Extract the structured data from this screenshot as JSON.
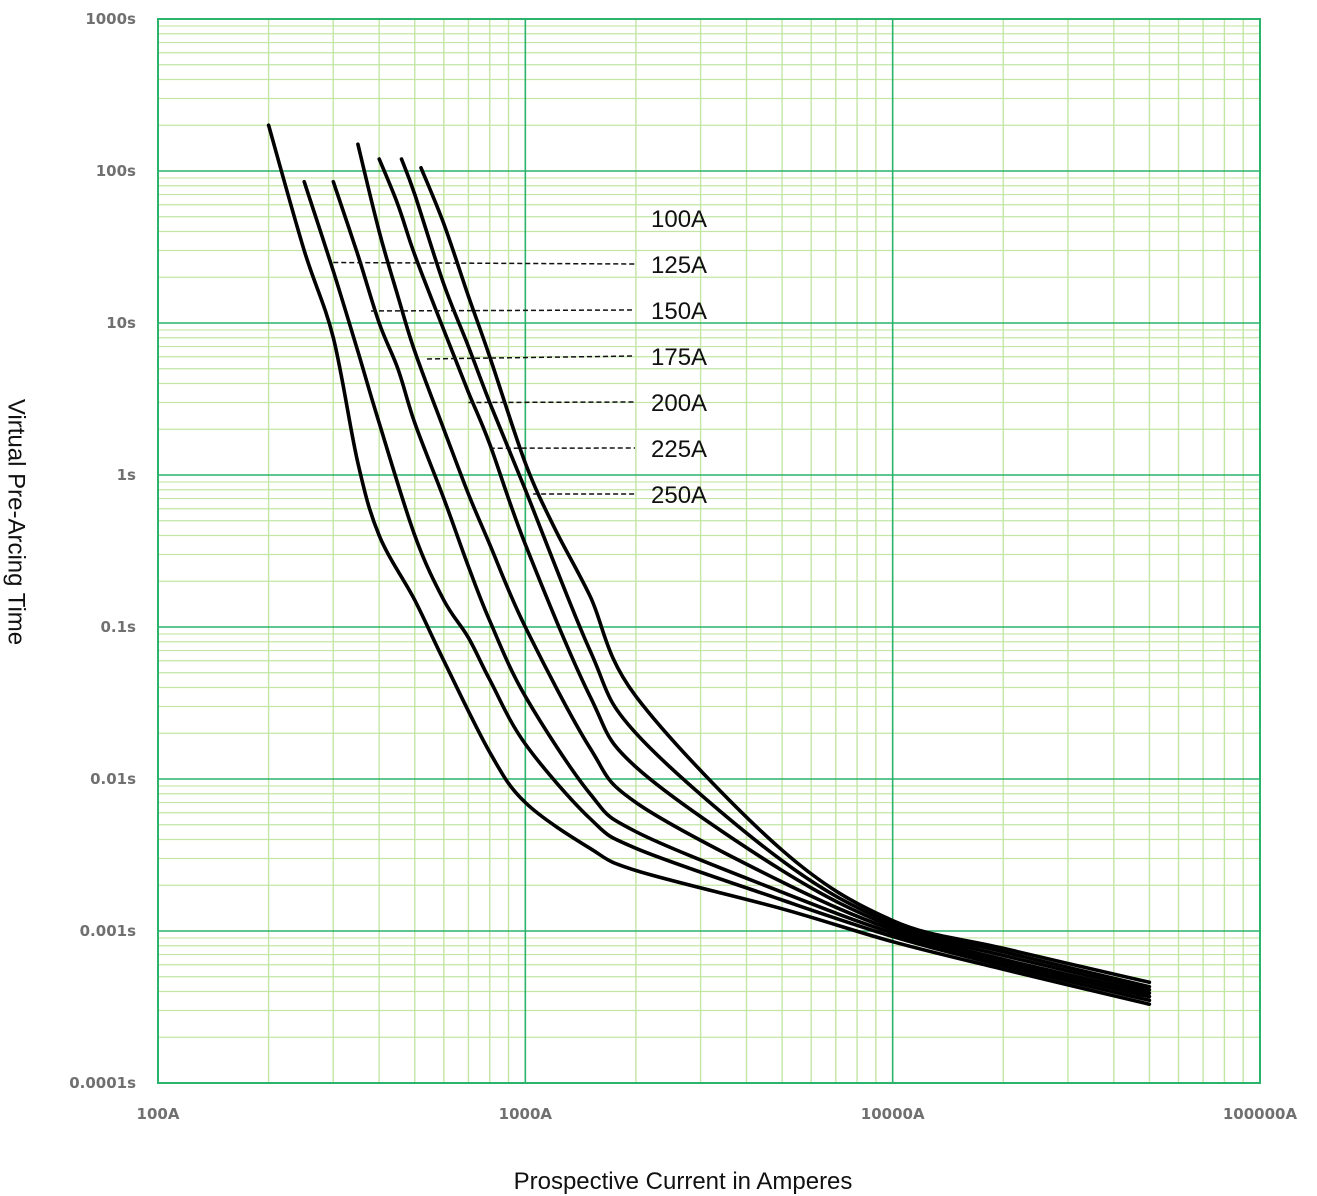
{
  "chart_data": {
    "type": "line",
    "scale": {
      "x": "log",
      "y": "log"
    },
    "xlim": [
      100,
      100000
    ],
    "ylim": [
      0.0001,
      1000
    ],
    "xlabel": "Prospective Current in Amperes",
    "ylabel": "Virtual Pre-Arcing Time",
    "x_ticks": [
      {
        "value": 100,
        "label": "100A"
      },
      {
        "value": 1000,
        "label": "1000A"
      },
      {
        "value": 10000,
        "label": "10000A"
      },
      {
        "value": 100000,
        "label": "100000A"
      }
    ],
    "y_ticks": [
      {
        "value": 1000,
        "label": "1000s"
      },
      {
        "value": 100,
        "label": "100s"
      },
      {
        "value": 10,
        "label": "10s"
      },
      {
        "value": 1,
        "label": "1s"
      },
      {
        "value": 0.1,
        "label": "0.1s"
      },
      {
        "value": 0.01,
        "label": "0.01s"
      },
      {
        "value": 0.001,
        "label": "0.001s"
      },
      {
        "value": 0.0001,
        "label": "0.0001s"
      }
    ],
    "grid": true,
    "colors": {
      "major_grid": "#2ab36a",
      "minor_grid": "#c3e6a4",
      "curve": "#000000",
      "tick_text": "#707070"
    },
    "series": [
      {
        "name": "100A",
        "points": [
          [
            200,
            200
          ],
          [
            250,
            30
          ],
          [
            300,
            8
          ],
          [
            350,
            1.2
          ],
          [
            400,
            0.4
          ],
          [
            500,
            0.15
          ],
          [
            600,
            0.06
          ],
          [
            800,
            0.015
          ],
          [
            1000,
            0.007
          ],
          [
            1500,
            0.0035
          ],
          [
            2000,
            0.0025
          ],
          [
            5000,
            0.0014
          ],
          [
            10000,
            0.00085
          ],
          [
            20000,
            0.00056
          ],
          [
            50000,
            0.00033
          ]
        ]
      },
      {
        "name": "125A",
        "points": [
          [
            250,
            85
          ],
          [
            300,
            22
          ],
          [
            350,
            6.5
          ],
          [
            400,
            2.2
          ],
          [
            500,
            0.4
          ],
          [
            600,
            0.15
          ],
          [
            700,
            0.085
          ],
          [
            800,
            0.045
          ],
          [
            1000,
            0.017
          ],
          [
            1500,
            0.0055
          ],
          [
            2000,
            0.0035
          ],
          [
            5000,
            0.0016
          ],
          [
            10000,
            0.00092
          ],
          [
            20000,
            0.00059
          ],
          [
            50000,
            0.00035
          ]
        ]
      },
      {
        "name": "150A",
        "points": [
          [
            300,
            85
          ],
          [
            350,
            28
          ],
          [
            400,
            10
          ],
          [
            450,
            5
          ],
          [
            500,
            2.2
          ],
          [
            600,
            0.7
          ],
          [
            700,
            0.25
          ],
          [
            800,
            0.11
          ],
          [
            1000,
            0.035
          ],
          [
            1500,
            0.008
          ],
          [
            2000,
            0.0045
          ],
          [
            5000,
            0.0018
          ],
          [
            10000,
            0.00097
          ],
          [
            20000,
            0.00062
          ],
          [
            50000,
            0.00037
          ]
        ]
      },
      {
        "name": "175A",
        "points": [
          [
            350,
            150
          ],
          [
            400,
            40
          ],
          [
            450,
            15
          ],
          [
            500,
            6.5
          ],
          [
            600,
            2
          ],
          [
            700,
            0.75
          ],
          [
            800,
            0.35
          ],
          [
            1000,
            0.1
          ],
          [
            1500,
            0.016
          ],
          [
            2000,
            0.007
          ],
          [
            5000,
            0.0021
          ],
          [
            10000,
            0.00102
          ],
          [
            20000,
            0.00065
          ],
          [
            50000,
            0.00039
          ]
        ]
      },
      {
        "name": "200A",
        "points": [
          [
            400,
            120
          ],
          [
            450,
            60
          ],
          [
            500,
            28
          ],
          [
            600,
            9
          ],
          [
            700,
            3.5
          ],
          [
            800,
            1.6
          ],
          [
            1000,
            0.35
          ],
          [
            1500,
            0.035
          ],
          [
            2000,
            0.012
          ],
          [
            5000,
            0.0025
          ],
          [
            10000,
            0.00107
          ],
          [
            20000,
            0.00069
          ],
          [
            50000,
            0.00041
          ]
        ]
      },
      {
        "name": "225A",
        "points": [
          [
            460,
            120
          ],
          [
            500,
            70
          ],
          [
            600,
            18
          ],
          [
            700,
            7
          ],
          [
            800,
            3
          ],
          [
            1000,
            0.8
          ],
          [
            1500,
            0.07
          ],
          [
            2000,
            0.02
          ],
          [
            5000,
            0.0029
          ],
          [
            10000,
            0.00112
          ],
          [
            20000,
            0.00073
          ],
          [
            50000,
            0.00043
          ]
        ]
      },
      {
        "name": "250A",
        "points": [
          [
            520,
            105
          ],
          [
            600,
            45
          ],
          [
            700,
            15
          ],
          [
            800,
            6
          ],
          [
            1000,
            1.2
          ],
          [
            1200,
            0.45
          ],
          [
            1500,
            0.16
          ],
          [
            2000,
            0.035
          ],
          [
            5000,
            0.0034
          ],
          [
            10000,
            0.00117
          ],
          [
            20000,
            0.00077
          ],
          [
            50000,
            0.00046
          ]
        ]
      }
    ],
    "annotations": [
      {
        "label": "100A",
        "points_to": null
      },
      {
        "label": "125A",
        "points_to": [
          300,
          25
        ]
      },
      {
        "label": "150A",
        "points_to": [
          380,
          12
        ]
      },
      {
        "label": "175A",
        "points_to": [
          540,
          5.8
        ]
      },
      {
        "label": "200A",
        "points_to": [
          700,
          3
        ]
      },
      {
        "label": "225A",
        "points_to": [
          800,
          1.5
        ]
      },
      {
        "label": "250A",
        "points_to": [
          1050,
          0.75
        ]
      }
    ]
  }
}
